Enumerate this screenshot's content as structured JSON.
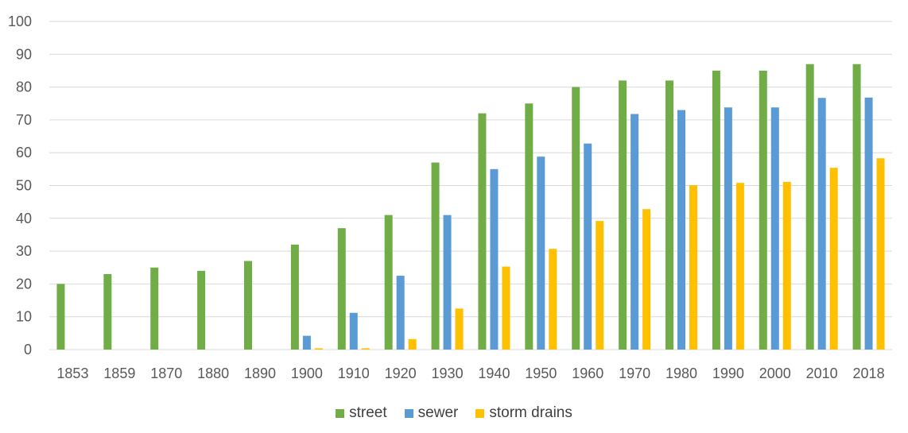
{
  "chart_data": {
    "type": "bar",
    "title": "",
    "xlabel": "",
    "ylabel": "",
    "ylim": [
      0,
      100
    ],
    "yticks": [
      0,
      10,
      20,
      30,
      40,
      50,
      60,
      70,
      80,
      90,
      100
    ],
    "grid": true,
    "legend_position": "bottom",
    "categories": [
      "1853",
      "1859",
      "1870",
      "1880",
      "1890",
      "1900",
      "1910",
      "1920",
      "1930",
      "1940",
      "1950",
      "1960",
      "1970",
      "1980",
      "1990",
      "2000",
      "2010",
      "2018"
    ],
    "series": [
      {
        "name": "street",
        "color": "#70AD47",
        "values": [
          20,
          23,
          25,
          24,
          27,
          32,
          37,
          41,
          57,
          72,
          75,
          80,
          82,
          82,
          85,
          85,
          87,
          87
        ]
      },
      {
        "name": "sewer",
        "color": "#5B9BD5",
        "values": [
          0,
          0,
          0,
          0,
          0,
          4.2,
          11.2,
          22.5,
          41,
          55,
          58.8,
          62.8,
          71.8,
          73,
          73.8,
          73.8,
          76.7,
          76.8
        ]
      },
      {
        "name": "storm drains",
        "color": "#FFC000",
        "values": [
          0,
          0,
          0,
          0,
          0,
          0.4,
          0.4,
          3.2,
          12.5,
          25.3,
          30.7,
          39.2,
          42.8,
          50.1,
          50.8,
          51.1,
          55.4,
          58.3
        ]
      }
    ]
  }
}
